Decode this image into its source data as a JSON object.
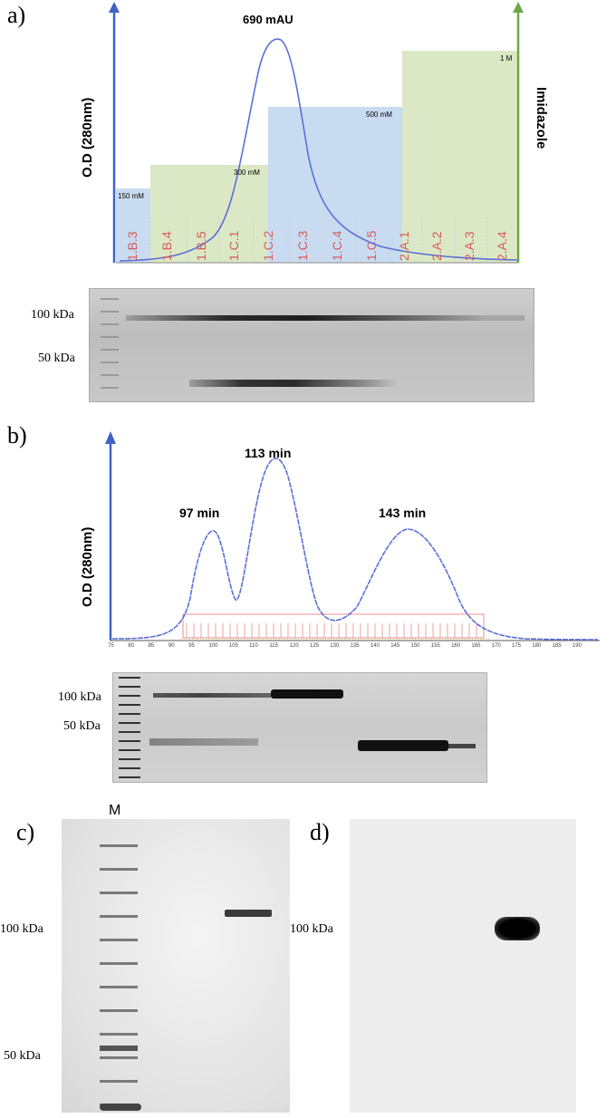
{
  "figure": {
    "panel_a": {
      "label": "a)",
      "y_axis_label": "O.D (280nm)",
      "right_axis_label": "Imidazole",
      "peak_label": "690 mAU",
      "steps": [
        {
          "name": "150 mM",
          "level": 150
        },
        {
          "name": "300 mM",
          "level": 300
        },
        {
          "name": "500 mM",
          "level": 500
        },
        {
          "name": "1 M",
          "level": 1000
        }
      ],
      "fractions": [
        "1.B.3",
        "1.B.4",
        "1.B.5",
        "1.C.1",
        "1.C.2",
        "1.C.3",
        "1.C.4",
        "1.C.5",
        "2.A.1",
        "2.A.2",
        "2.A.3",
        "2.A.4"
      ],
      "gel_markers": [
        "100 kDa",
        "50 kDa"
      ]
    },
    "panel_b": {
      "label": "b)",
      "y_axis_label": "O.D (280nm)",
      "peaks": [
        "97 min",
        "113 min",
        "143 min"
      ],
      "x_ticks": [
        "75",
        "80",
        "85",
        "90",
        "95",
        "100",
        "105",
        "110",
        "115",
        "120",
        "125",
        "130",
        "135",
        "140",
        "145",
        "150",
        "155",
        "160",
        "165",
        "170",
        "175",
        "180",
        "185",
        "190"
      ],
      "gel_markers": [
        "100 kDa",
        "50 kDa"
      ]
    },
    "panel_c": {
      "label": "c)",
      "lane_label": "M",
      "markers": [
        "100 kDa",
        "50 kDa"
      ]
    },
    "panel_d": {
      "label": "d)",
      "markers": [
        "100 kDa"
      ]
    }
  },
  "colors": {
    "trace": "#5b6fd6",
    "left_axis": "#3f63c6",
    "right_axis": "#6aa845",
    "green_fill": "#dbe8c6",
    "blue_fill": "#c9dbf0",
    "fraction_text": "#d65a5a"
  }
}
